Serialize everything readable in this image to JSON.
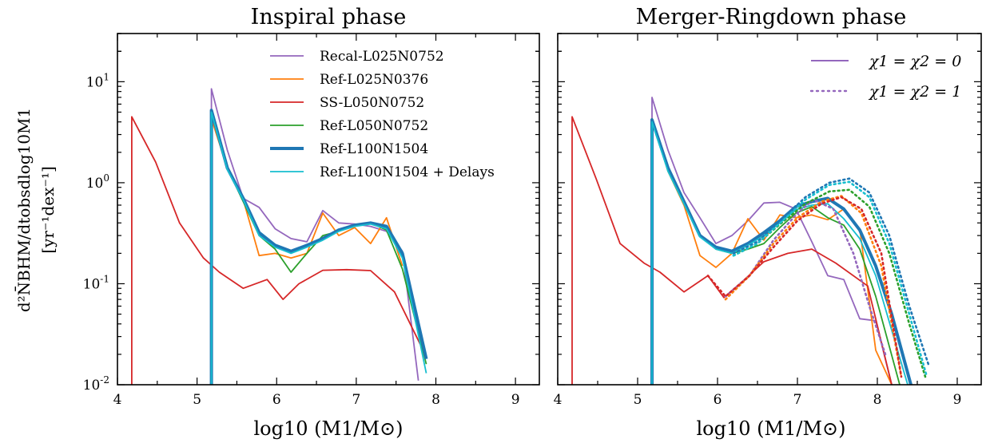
{
  "colors": {
    "Recal-L025N0752": "#9467bd",
    "Ref-L025N0376": "#ff7f0e",
    "SS-L050N0752": "#d62728",
    "Ref-L050N0752": "#2ca02c",
    "Ref-L100N1504": "#1f77b4",
    "Ref-L100N1504 + Delays": "#17becf",
    "spin_legend": "#9467bd"
  },
  "ylabel_line1": "d²N̄BHM/dtobsdlog10M1",
  "ylabel_line2": "[yr⁻¹dex⁻¹]",
  "ytick_labels": [
    "10-2",
    "10-1",
    "100",
    "101"
  ],
  "spin_legend": [
    {
      "label": "χ1 = χ2 = 0",
      "style": "solid"
    },
    {
      "label": "χ1 = χ2 = 1",
      "style": "dotted"
    }
  ],
  "chart_data": [
    {
      "type": "line",
      "title": "Inspiral phase",
      "xlabel": "log10 (M1/M⊙)",
      "ylabel": "d²N̄BHM/dtobsdlog10M1 [yr⁻¹dex⁻¹]",
      "xlim": [
        4,
        9.3
      ],
      "ylim": [
        0.01,
        30
      ],
      "yscale": "log",
      "xticks": [
        4,
        5,
        6,
        7,
        8,
        9
      ],
      "legend": "top-center",
      "series": [
        {
          "name": "Recal-L025N0752",
          "x": [
            5.18,
            5.18,
            5.38,
            5.58,
            5.78,
            5.98,
            6.18,
            6.38,
            6.58,
            6.78,
            6.98,
            7.18,
            7.38,
            7.58,
            7.78
          ],
          "y": [
            0.01,
            8.5,
            2.1,
            0.7,
            0.57,
            0.35,
            0.28,
            0.26,
            0.53,
            0.4,
            0.39,
            0.37,
            0.33,
            0.21,
            0.011
          ]
        },
        {
          "name": "Ref-L025N0376",
          "x": [
            5.18,
            5.18,
            5.38,
            5.58,
            5.78,
            5.98,
            6.18,
            6.38,
            6.58,
            6.78,
            6.98,
            7.18,
            7.38,
            7.58
          ],
          "y": [
            0.01,
            4.3,
            1.4,
            0.68,
            0.19,
            0.2,
            0.18,
            0.2,
            0.5,
            0.3,
            0.36,
            0.25,
            0.45,
            0.15
          ]
        },
        {
          "name": "SS-L050N0752",
          "x": [
            4.18,
            4.18,
            4.48,
            4.78,
            5.08,
            5.28,
            5.58,
            5.88,
            6.08,
            6.28,
            6.58,
            6.88,
            7.18,
            7.48,
            7.88
          ],
          "y": [
            0.01,
            4.5,
            1.6,
            0.4,
            0.18,
            0.13,
            0.09,
            0.11,
            0.07,
            0.1,
            0.136,
            0.138,
            0.135,
            0.083,
            0.019
          ]
        },
        {
          "name": "Ref-L050N0752",
          "x": [
            5.18,
            5.18,
            5.38,
            5.58,
            5.78,
            5.98,
            6.18,
            6.38,
            6.58,
            6.78,
            6.98,
            7.18,
            7.38,
            7.58,
            7.88
          ],
          "y": [
            0.01,
            5.0,
            1.4,
            0.65,
            0.3,
            0.22,
            0.13,
            0.2,
            0.3,
            0.33,
            0.38,
            0.4,
            0.34,
            0.14,
            0.016
          ]
        },
        {
          "name": "Ref-L100N1504",
          "x": [
            5.18,
            5.18,
            5.38,
            5.58,
            5.78,
            5.98,
            6.18,
            6.38,
            6.58,
            6.78,
            6.98,
            7.18,
            7.38,
            7.58,
            7.88
          ],
          "y": [
            0.01,
            5.2,
            1.4,
            0.7,
            0.32,
            0.24,
            0.21,
            0.24,
            0.28,
            0.34,
            0.38,
            0.4,
            0.37,
            0.2,
            0.018
          ]
        },
        {
          "name": "Ref-L100N1504 + Delays",
          "x": [
            5.18,
            5.18,
            5.38,
            5.58,
            5.78,
            5.98,
            6.18,
            6.38,
            6.58,
            6.78,
            6.98,
            7.18,
            7.38,
            7.58,
            7.88
          ],
          "y": [
            0.01,
            5.0,
            1.35,
            0.68,
            0.3,
            0.23,
            0.2,
            0.23,
            0.27,
            0.33,
            0.37,
            0.39,
            0.35,
            0.18,
            0.013
          ]
        }
      ]
    },
    {
      "type": "line",
      "title": "Merger-Ringdown phase",
      "xlabel": "log10 (M1/M⊙)",
      "xlim": [
        4,
        9.3
      ],
      "ylim": [
        0.01,
        30
      ],
      "yscale": "log",
      "xticks": [
        4,
        5,
        6,
        7,
        8,
        9
      ],
      "legend": "top-right",
      "series": [
        {
          "name": "Recal-L025N0752",
          "spin": "χ1=χ2=0",
          "x": [
            5.18,
            5.18,
            5.38,
            5.58,
            5.78,
            5.98,
            6.18,
            6.38,
            6.58,
            6.78,
            6.98,
            7.18,
            7.38,
            7.58,
            7.78,
            7.98,
            8.18
          ],
          "y": [
            0.01,
            7.0,
            2.1,
            0.8,
            0.45,
            0.25,
            0.3,
            0.42,
            0.63,
            0.64,
            0.55,
            0.26,
            0.12,
            0.11,
            0.045,
            0.043,
            0.01
          ]
        },
        {
          "name": "Ref-L025N0376",
          "spin": "χ1=χ2=0",
          "x": [
            5.18,
            5.18,
            5.38,
            5.58,
            5.78,
            5.98,
            6.18,
            6.38,
            6.58,
            6.78,
            6.98,
            7.18,
            7.38,
            7.58,
            7.78,
            7.98,
            8.18
          ],
          "y": [
            0.01,
            4.3,
            1.3,
            0.6,
            0.19,
            0.145,
            0.2,
            0.44,
            0.27,
            0.48,
            0.45,
            0.48,
            0.43,
            0.55,
            0.35,
            0.022,
            0.01
          ]
        },
        {
          "name": "SS-L050N0752",
          "spin": "χ1=χ2=0",
          "x": [
            4.18,
            4.18,
            4.48,
            4.78,
            5.08,
            5.28,
            5.58,
            5.88,
            6.08,
            6.28,
            6.58,
            6.88,
            7.18,
            7.48,
            7.88,
            8.18
          ],
          "y": [
            0.01,
            4.5,
            1.1,
            0.25,
            0.16,
            0.13,
            0.083,
            0.12,
            0.073,
            0.1,
            0.165,
            0.2,
            0.22,
            0.16,
            0.095,
            0.01
          ]
        },
        {
          "name": "Ref-L050N0752",
          "spin": "χ1=χ2=0",
          "x": [
            5.18,
            5.18,
            5.38,
            5.58,
            5.78,
            5.98,
            6.18,
            6.38,
            6.58,
            6.78,
            6.98,
            7.18,
            7.38,
            7.58,
            7.78,
            7.98,
            8.28
          ],
          "y": [
            0.01,
            4.3,
            1.3,
            0.62,
            0.3,
            0.22,
            0.2,
            0.22,
            0.25,
            0.36,
            0.5,
            0.58,
            0.45,
            0.38,
            0.22,
            0.075,
            0.01
          ]
        },
        {
          "name": "Ref-L100N1504",
          "spin": "χ1=χ2=0",
          "x": [
            5.18,
            5.18,
            5.38,
            5.58,
            5.78,
            5.98,
            6.18,
            6.38,
            6.58,
            6.78,
            6.98,
            7.18,
            7.38,
            7.58,
            7.78,
            7.98,
            8.18,
            8.42
          ],
          "y": [
            0.01,
            4.2,
            1.4,
            0.65,
            0.3,
            0.23,
            0.21,
            0.25,
            0.32,
            0.42,
            0.58,
            0.65,
            0.7,
            0.55,
            0.34,
            0.15,
            0.05,
            0.01
          ]
        },
        {
          "name": "Ref-L100N1504 + Delays",
          "spin": "χ1=χ2=0",
          "x": [
            5.18,
            5.18,
            5.38,
            5.58,
            5.78,
            5.98,
            6.18,
            6.38,
            6.58,
            6.78,
            6.98,
            7.18,
            7.38,
            7.58,
            7.78,
            7.98,
            8.38
          ],
          "y": [
            0.01,
            4.0,
            1.3,
            0.62,
            0.29,
            0.22,
            0.2,
            0.24,
            0.3,
            0.4,
            0.54,
            0.6,
            0.62,
            0.44,
            0.28,
            0.12,
            0.01
          ]
        },
        {
          "name": "Recal-L025N0752",
          "spin": "χ1=χ2=1",
          "x": [
            6.1,
            6.4,
            6.7,
            7.0,
            7.2,
            7.45,
            7.7,
            7.9,
            8.1
          ],
          "y": [
            0.075,
            0.12,
            0.27,
            0.5,
            0.68,
            0.55,
            0.2,
            0.06,
            0.02
          ]
        },
        {
          "name": "Ref-L025N0376",
          "spin": "χ1=χ2=1",
          "x": [
            6.1,
            6.4,
            6.7,
            7.0,
            7.3,
            7.55,
            7.8,
            8.05,
            8.3
          ],
          "y": [
            0.07,
            0.12,
            0.25,
            0.45,
            0.65,
            0.74,
            0.5,
            0.15,
            0.012
          ]
        },
        {
          "name": "SS-L050N0752",
          "spin": "χ1=χ2=1",
          "x": [
            5.88,
            6.1,
            6.4,
            6.7,
            7.0,
            7.3,
            7.55,
            7.8,
            8.05,
            8.3
          ],
          "y": [
            0.12,
            0.075,
            0.12,
            0.23,
            0.42,
            0.62,
            0.72,
            0.55,
            0.2,
            0.012
          ]
        },
        {
          "name": "Ref-L050N0752",
          "spin": "χ1=χ2=1",
          "x": [
            6.2,
            6.5,
            6.8,
            7.1,
            7.4,
            7.65,
            7.9,
            8.15,
            8.4,
            8.6
          ],
          "y": [
            0.19,
            0.25,
            0.4,
            0.62,
            0.82,
            0.85,
            0.58,
            0.2,
            0.04,
            0.012
          ]
        },
        {
          "name": "Ref-L100N1504",
          "spin": "χ1=χ2=1",
          "x": [
            6.2,
            6.5,
            6.8,
            7.1,
            7.4,
            7.65,
            7.9,
            8.15,
            8.4,
            8.65
          ],
          "y": [
            0.2,
            0.26,
            0.43,
            0.72,
            1.0,
            1.1,
            0.8,
            0.3,
            0.06,
            0.015
          ]
        },
        {
          "name": "Ref-L100N1504 + Delays",
          "spin": "χ1=χ2=1",
          "x": [
            6.2,
            6.5,
            6.8,
            7.1,
            7.4,
            7.65,
            7.9,
            8.15,
            8.4,
            8.62
          ],
          "y": [
            0.19,
            0.25,
            0.41,
            0.68,
            0.95,
            1.02,
            0.72,
            0.25,
            0.05,
            0.012
          ]
        }
      ]
    }
  ]
}
